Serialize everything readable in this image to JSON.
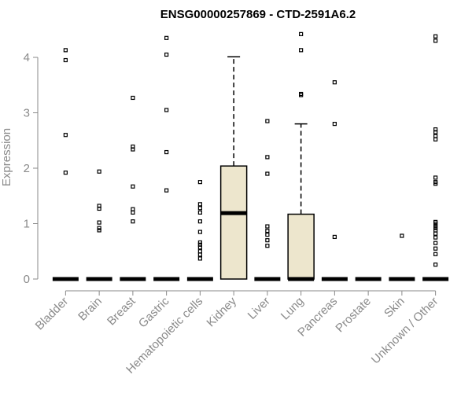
{
  "chart_data": {
    "type": "box",
    "title": "ENSG00000257869 - CTD-2591A6.2",
    "xlabel": "",
    "ylabel": "Expression",
    "ylim": [
      0,
      4.5
    ],
    "yticks": [
      "0",
      "1",
      "2",
      "3",
      "4"
    ],
    "box_fill": "#ede6cd",
    "box_stroke": "#000000",
    "categories": [
      "Bladder",
      "Brain",
      "Breast",
      "Gastric",
      "Hematopoietic cells",
      "Kidney",
      "Liver",
      "Lung",
      "Pancreas",
      "Prostate",
      "Skin",
      "Unknown / Other"
    ],
    "boxes": [
      {
        "category": "Bladder",
        "min": 0,
        "q1": 0,
        "median": 0,
        "q3": 0,
        "max": 0,
        "outliers": [
          1.92,
          2.6,
          3.95,
          4.13
        ]
      },
      {
        "category": "Brain",
        "min": 0,
        "q1": 0,
        "median": 0,
        "q3": 0,
        "max": 0,
        "outliers": [
          0.88,
          0.92,
          1.02,
          1.27,
          1.32,
          1.94
        ]
      },
      {
        "category": "Breast",
        "min": 0,
        "q1": 0,
        "median": 0,
        "q3": 0,
        "max": 0,
        "outliers": [
          1.04,
          1.2,
          1.26,
          1.67,
          2.34,
          2.39,
          3.27
        ]
      },
      {
        "category": "Gastric",
        "min": 0,
        "q1": 0,
        "median": 0,
        "q3": 0,
        "max": 0,
        "outliers": [
          1.6,
          2.29,
          3.05,
          4.05,
          4.35
        ]
      },
      {
        "category": "Hematopoietic cells",
        "min": 0,
        "q1": 0,
        "median": 0,
        "q3": 0,
        "max": 0,
        "outliers": [
          0.37,
          0.44,
          0.5,
          0.57,
          0.62,
          0.66,
          0.85,
          1.04,
          1.2,
          1.28,
          1.35,
          1.75
        ]
      },
      {
        "category": "Kidney",
        "min": 0,
        "q1": 0,
        "median": 1.19,
        "q3": 2.04,
        "max": 4.01,
        "outliers": []
      },
      {
        "category": "Liver",
        "min": 0,
        "q1": 0,
        "median": 0,
        "q3": 0,
        "max": 0,
        "outliers": [
          0.6,
          0.7,
          0.8,
          0.87,
          0.95,
          1.9,
          2.2,
          2.85
        ]
      },
      {
        "category": "Lung",
        "min": 0,
        "q1": 0,
        "median": 0,
        "q3": 1.17,
        "max": 2.8,
        "outliers": [
          3.32,
          3.34,
          4.13,
          4.42
        ]
      },
      {
        "category": "Pancreas",
        "min": 0,
        "q1": 0,
        "median": 0,
        "q3": 0,
        "max": 0,
        "outliers": [
          0.76,
          2.8,
          3.55
        ]
      },
      {
        "category": "Prostate",
        "min": 0,
        "q1": 0,
        "median": 0,
        "q3": 0,
        "max": 0,
        "outliers": []
      },
      {
        "category": "Skin",
        "min": 0,
        "q1": 0,
        "median": 0,
        "q3": 0,
        "max": 0,
        "outliers": [
          0.78
        ]
      },
      {
        "category": "Unknown / Other",
        "min": 0,
        "q1": 0,
        "median": 0,
        "q3": 0,
        "max": 0,
        "outliers": [
          0.26,
          0.45,
          0.55,
          0.65,
          0.75,
          0.82,
          0.88,
          0.92,
          0.96,
          1.0,
          1.03,
          1.72,
          1.75,
          1.83,
          2.52,
          2.58,
          2.65,
          2.7,
          4.3,
          4.38
        ]
      }
    ]
  }
}
